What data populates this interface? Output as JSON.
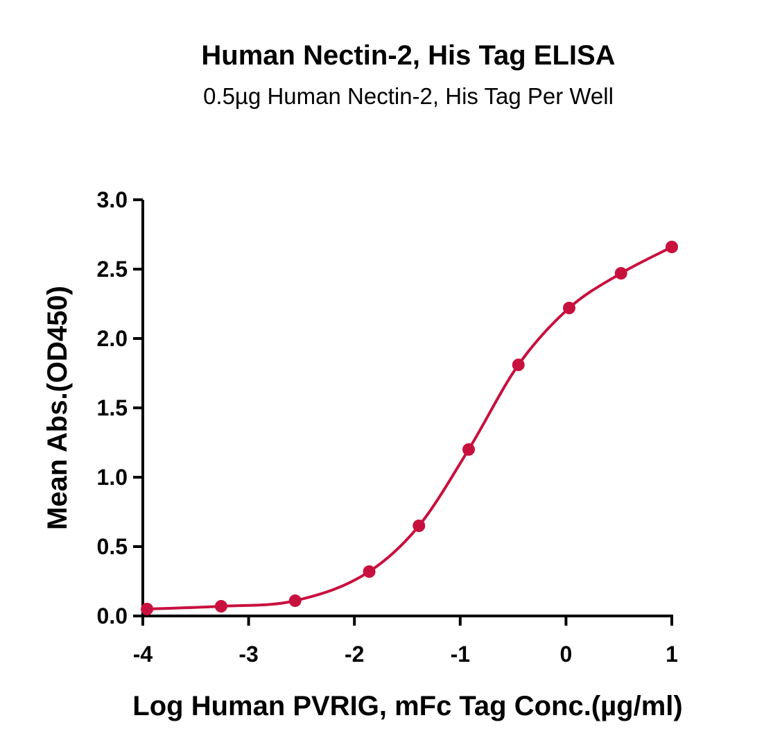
{
  "chart_data": {
    "type": "scatter",
    "title": "Human Nectin-2, His Tag ELISA",
    "subtitle": "0.5µg Human Nectin-2, His Tag Per Well",
    "xlabel": "Log Human PVRIG, mFc Tag Conc.(µg/ml)",
    "ylabel": "Mean Abs.(OD450)",
    "xlim": [
      -4,
      1
    ],
    "ylim": [
      0,
      3.0
    ],
    "x_ticks": [
      "-4",
      "-3",
      "-2",
      "-1",
      "0",
      "1"
    ],
    "y_ticks": [
      "0.0",
      "0.5",
      "1.0",
      "1.5",
      "2.0",
      "2.5",
      "3.0"
    ],
    "series": [
      {
        "x": [
          -3.96,
          -3.26,
          -2.56,
          -1.86,
          -1.39,
          -0.92,
          -0.45,
          0.03,
          0.52,
          1.0
        ],
        "y": [
          0.05,
          0.07,
          0.11,
          0.32,
          0.65,
          1.2,
          1.81,
          2.22,
          2.47,
          2.66
        ],
        "color": "#c8103e",
        "fit": "four-parameter logistic curve"
      }
    ],
    "grid": false,
    "legend": "none"
  }
}
